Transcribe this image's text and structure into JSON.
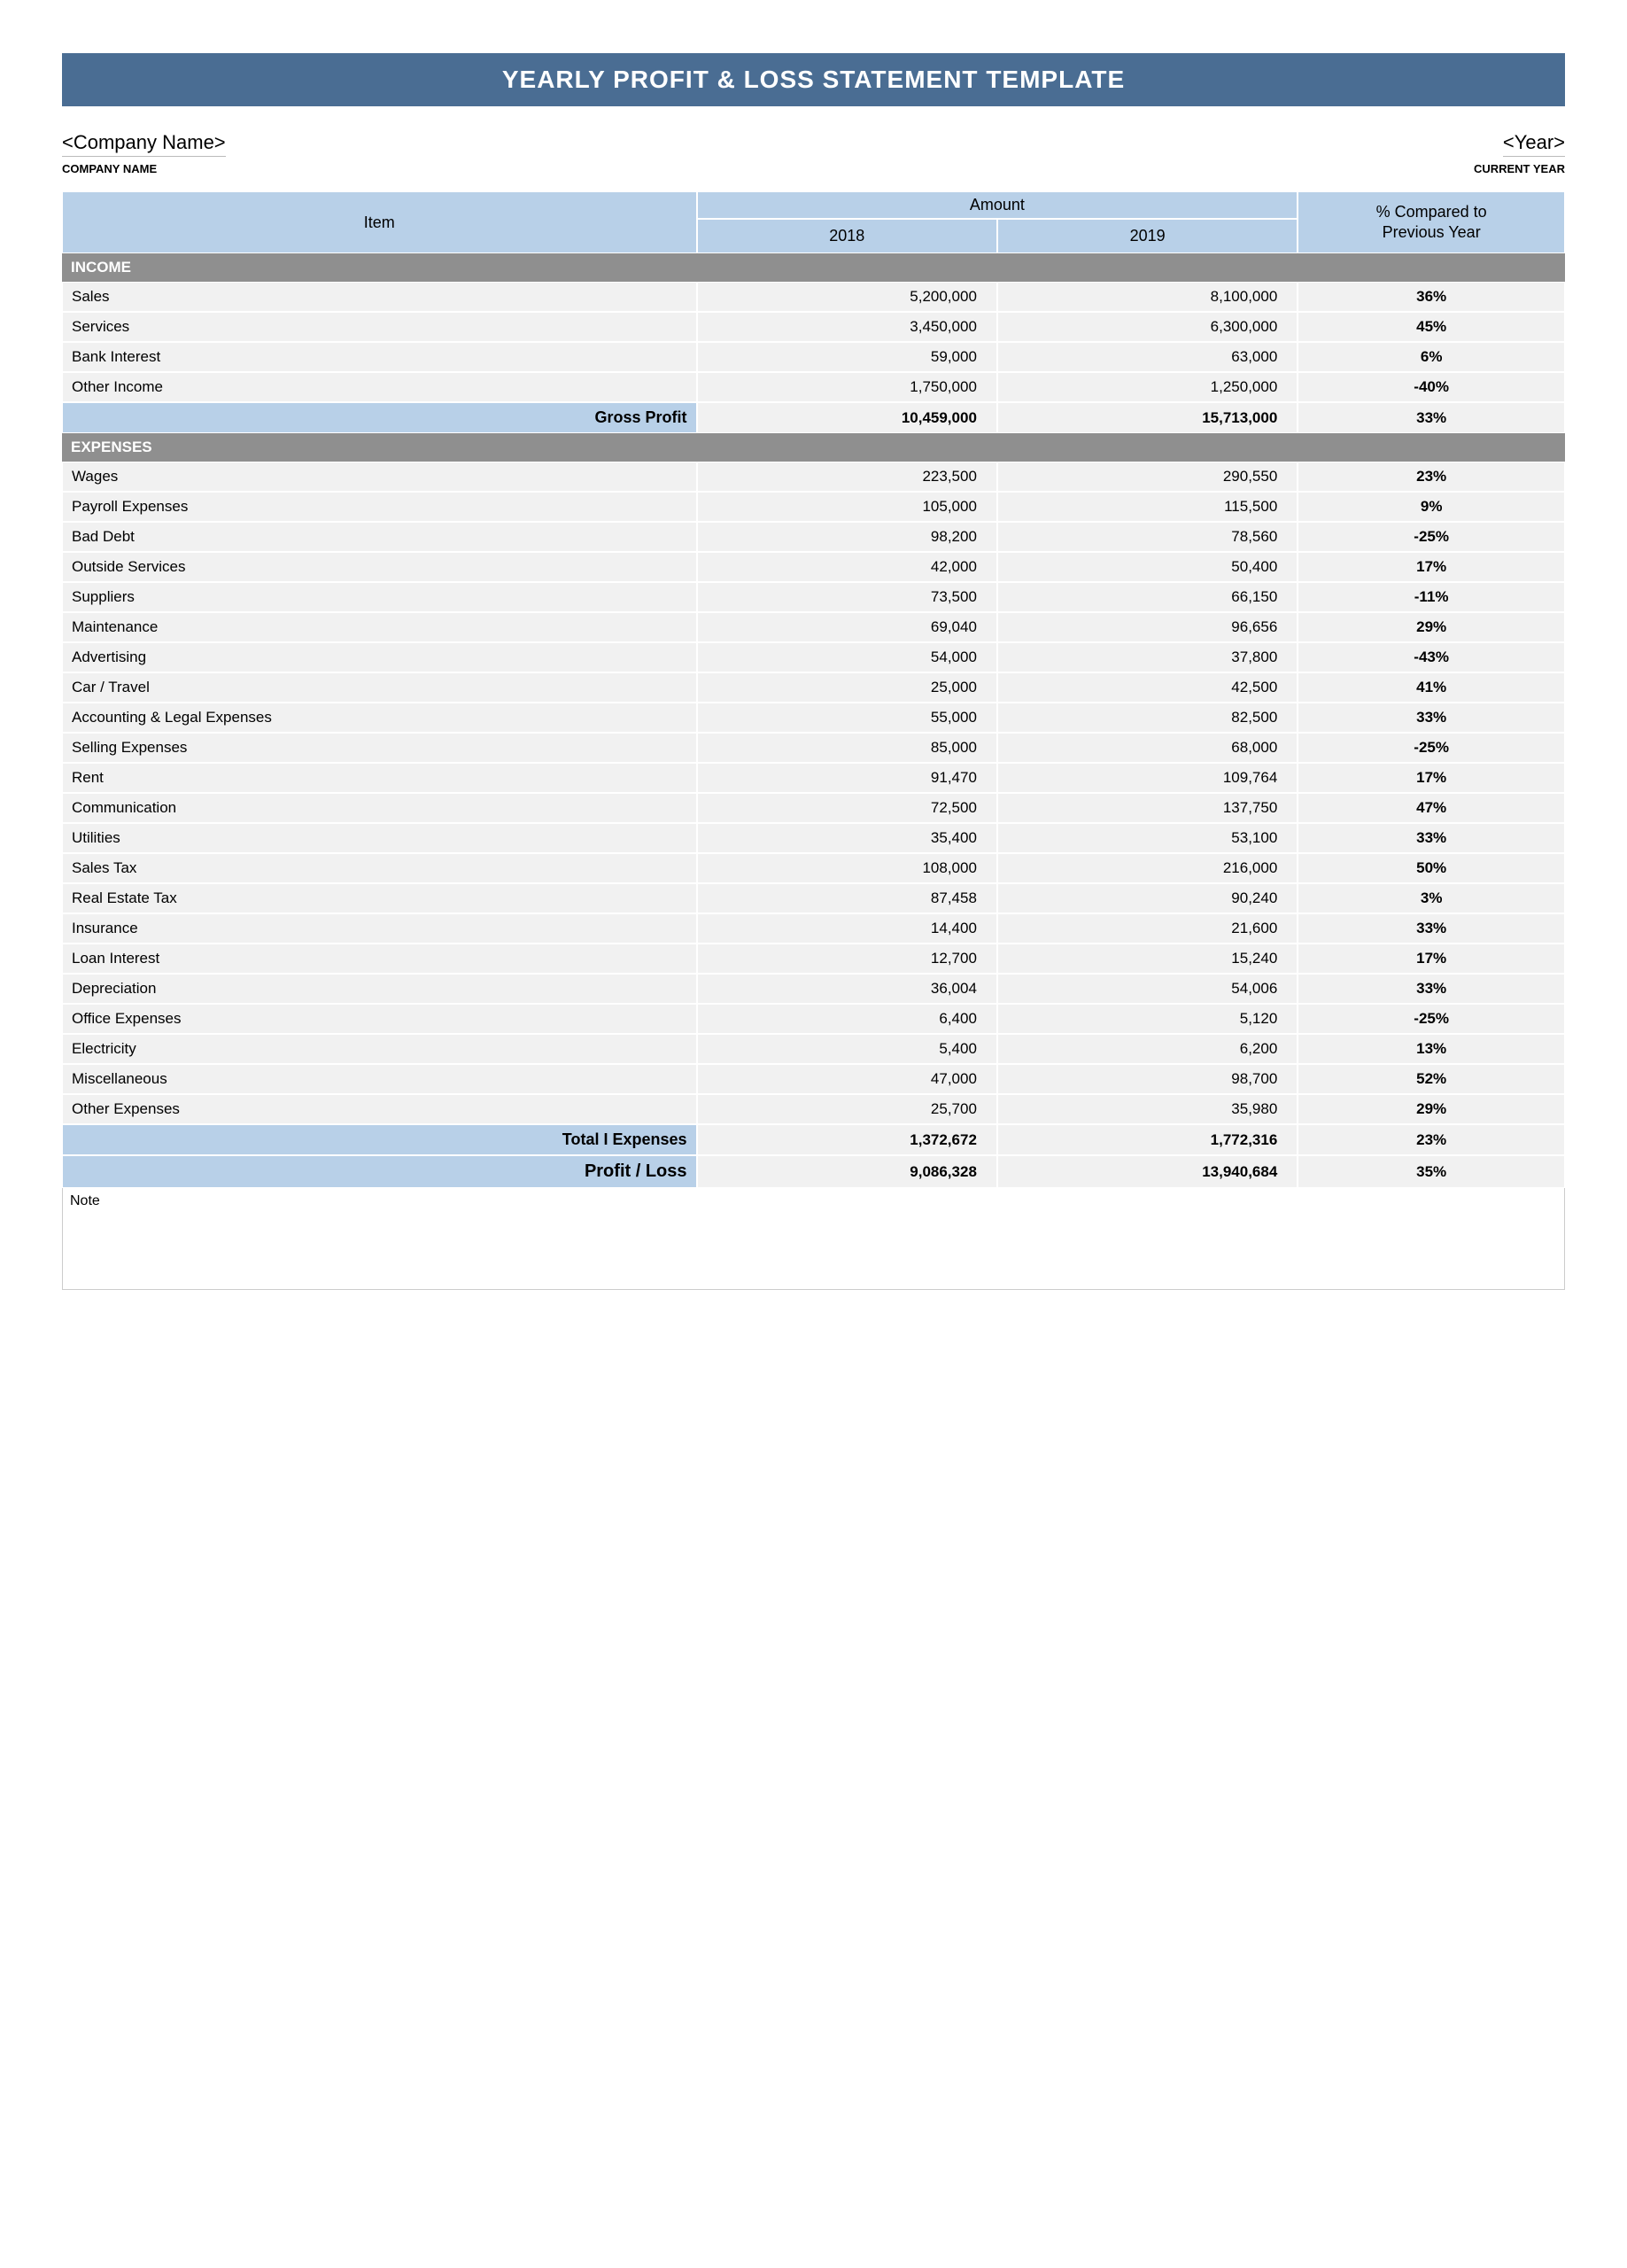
{
  "colors": {
    "banner_bg": "#4a6d93",
    "banner_text": "#ffffff",
    "header_blue": "#b8d0e8",
    "section_grey": "#8f8f8f",
    "section_text": "#ffffff",
    "row_bg": "#f1f1f1",
    "border": "#ffffff"
  },
  "banner_title": "YEARLY PROFIT & LOSS STATEMENT TEMPLATE",
  "meta": {
    "company_placeholder": "<Company Name>",
    "company_label": "COMPANY NAME",
    "year_placeholder": "<Year>",
    "year_label": "CURRENT YEAR"
  },
  "headers": {
    "item": "Item",
    "amount": "Amount",
    "year1": "2018",
    "year2": "2019",
    "pct_line1": "% Compared to",
    "pct_line2": "Previous Year"
  },
  "sections": {
    "income_label": "INCOME",
    "expenses_label": "EXPENSES"
  },
  "income_rows": [
    {
      "label": "Sales",
      "y1": "5,200,000",
      "y2": "8,100,000",
      "pct": "36%"
    },
    {
      "label": "Services",
      "y1": "3,450,000",
      "y2": "6,300,000",
      "pct": "45%"
    },
    {
      "label": "Bank Interest",
      "y1": "59,000",
      "y2": "63,000",
      "pct": "6%"
    },
    {
      "label": "Other Income",
      "y1": "1,750,000",
      "y2": "1,250,000",
      "pct": "-40%"
    }
  ],
  "gross_profit": {
    "label": "Gross Profit",
    "y1": "10,459,000",
    "y2": "15,713,000",
    "pct": "33%"
  },
  "expense_rows": [
    {
      "label": "Wages",
      "y1": "223,500",
      "y2": "290,550",
      "pct": "23%"
    },
    {
      "label": "Payroll Expenses",
      "y1": "105,000",
      "y2": "115,500",
      "pct": "9%"
    },
    {
      "label": "Bad Debt",
      "y1": "98,200",
      "y2": "78,560",
      "pct": "-25%"
    },
    {
      "label": "Outside Services",
      "y1": "42,000",
      "y2": "50,400",
      "pct": "17%"
    },
    {
      "label": "Suppliers",
      "y1": "73,500",
      "y2": "66,150",
      "pct": "-11%"
    },
    {
      "label": "Maintenance",
      "y1": "69,040",
      "y2": "96,656",
      "pct": "29%"
    },
    {
      "label": "Advertising",
      "y1": "54,000",
      "y2": "37,800",
      "pct": "-43%"
    },
    {
      "label": "Car / Travel",
      "y1": "25,000",
      "y2": "42,500",
      "pct": "41%"
    },
    {
      "label": "Accounting & Legal Expenses",
      "y1": "55,000",
      "y2": "82,500",
      "pct": "33%"
    },
    {
      "label": "Selling Expenses",
      "y1": "85,000",
      "y2": "68,000",
      "pct": "-25%"
    },
    {
      "label": "Rent",
      "y1": "91,470",
      "y2": "109,764",
      "pct": "17%"
    },
    {
      "label": "Communication",
      "y1": "72,500",
      "y2": "137,750",
      "pct": "47%"
    },
    {
      "label": "Utilities",
      "y1": "35,400",
      "y2": "53,100",
      "pct": "33%"
    },
    {
      "label": "Sales Tax",
      "y1": "108,000",
      "y2": "216,000",
      "pct": "50%"
    },
    {
      "label": "Real Estate Tax",
      "y1": "87,458",
      "y2": "90,240",
      "pct": "3%"
    },
    {
      "label": "Insurance",
      "y1": "14,400",
      "y2": "21,600",
      "pct": "33%"
    },
    {
      "label": "Loan Interest",
      "y1": "12,700",
      "y2": "15,240",
      "pct": "17%"
    },
    {
      "label": "Depreciation",
      "y1": "36,004",
      "y2": "54,006",
      "pct": "33%"
    },
    {
      "label": "Office Expenses",
      "y1": "6,400",
      "y2": "5,120",
      "pct": "-25%"
    },
    {
      "label": "Electricity",
      "y1": "5,400",
      "y2": "6,200",
      "pct": "13%"
    },
    {
      "label": "Miscellaneous",
      "y1": "47,000",
      "y2": "98,700",
      "pct": "52%"
    },
    {
      "label": "Other Expenses",
      "y1": "25,700",
      "y2": "35,980",
      "pct": "29%"
    }
  ],
  "total_expenses": {
    "label": "Total I Expenses",
    "y1": "1,372,672",
    "y2": "1,772,316",
    "pct": "23%"
  },
  "profit_loss": {
    "label": "Profit / Loss",
    "y1": "9,086,328",
    "y2": "13,940,684",
    "pct": "35%"
  },
  "note_label": "Note"
}
